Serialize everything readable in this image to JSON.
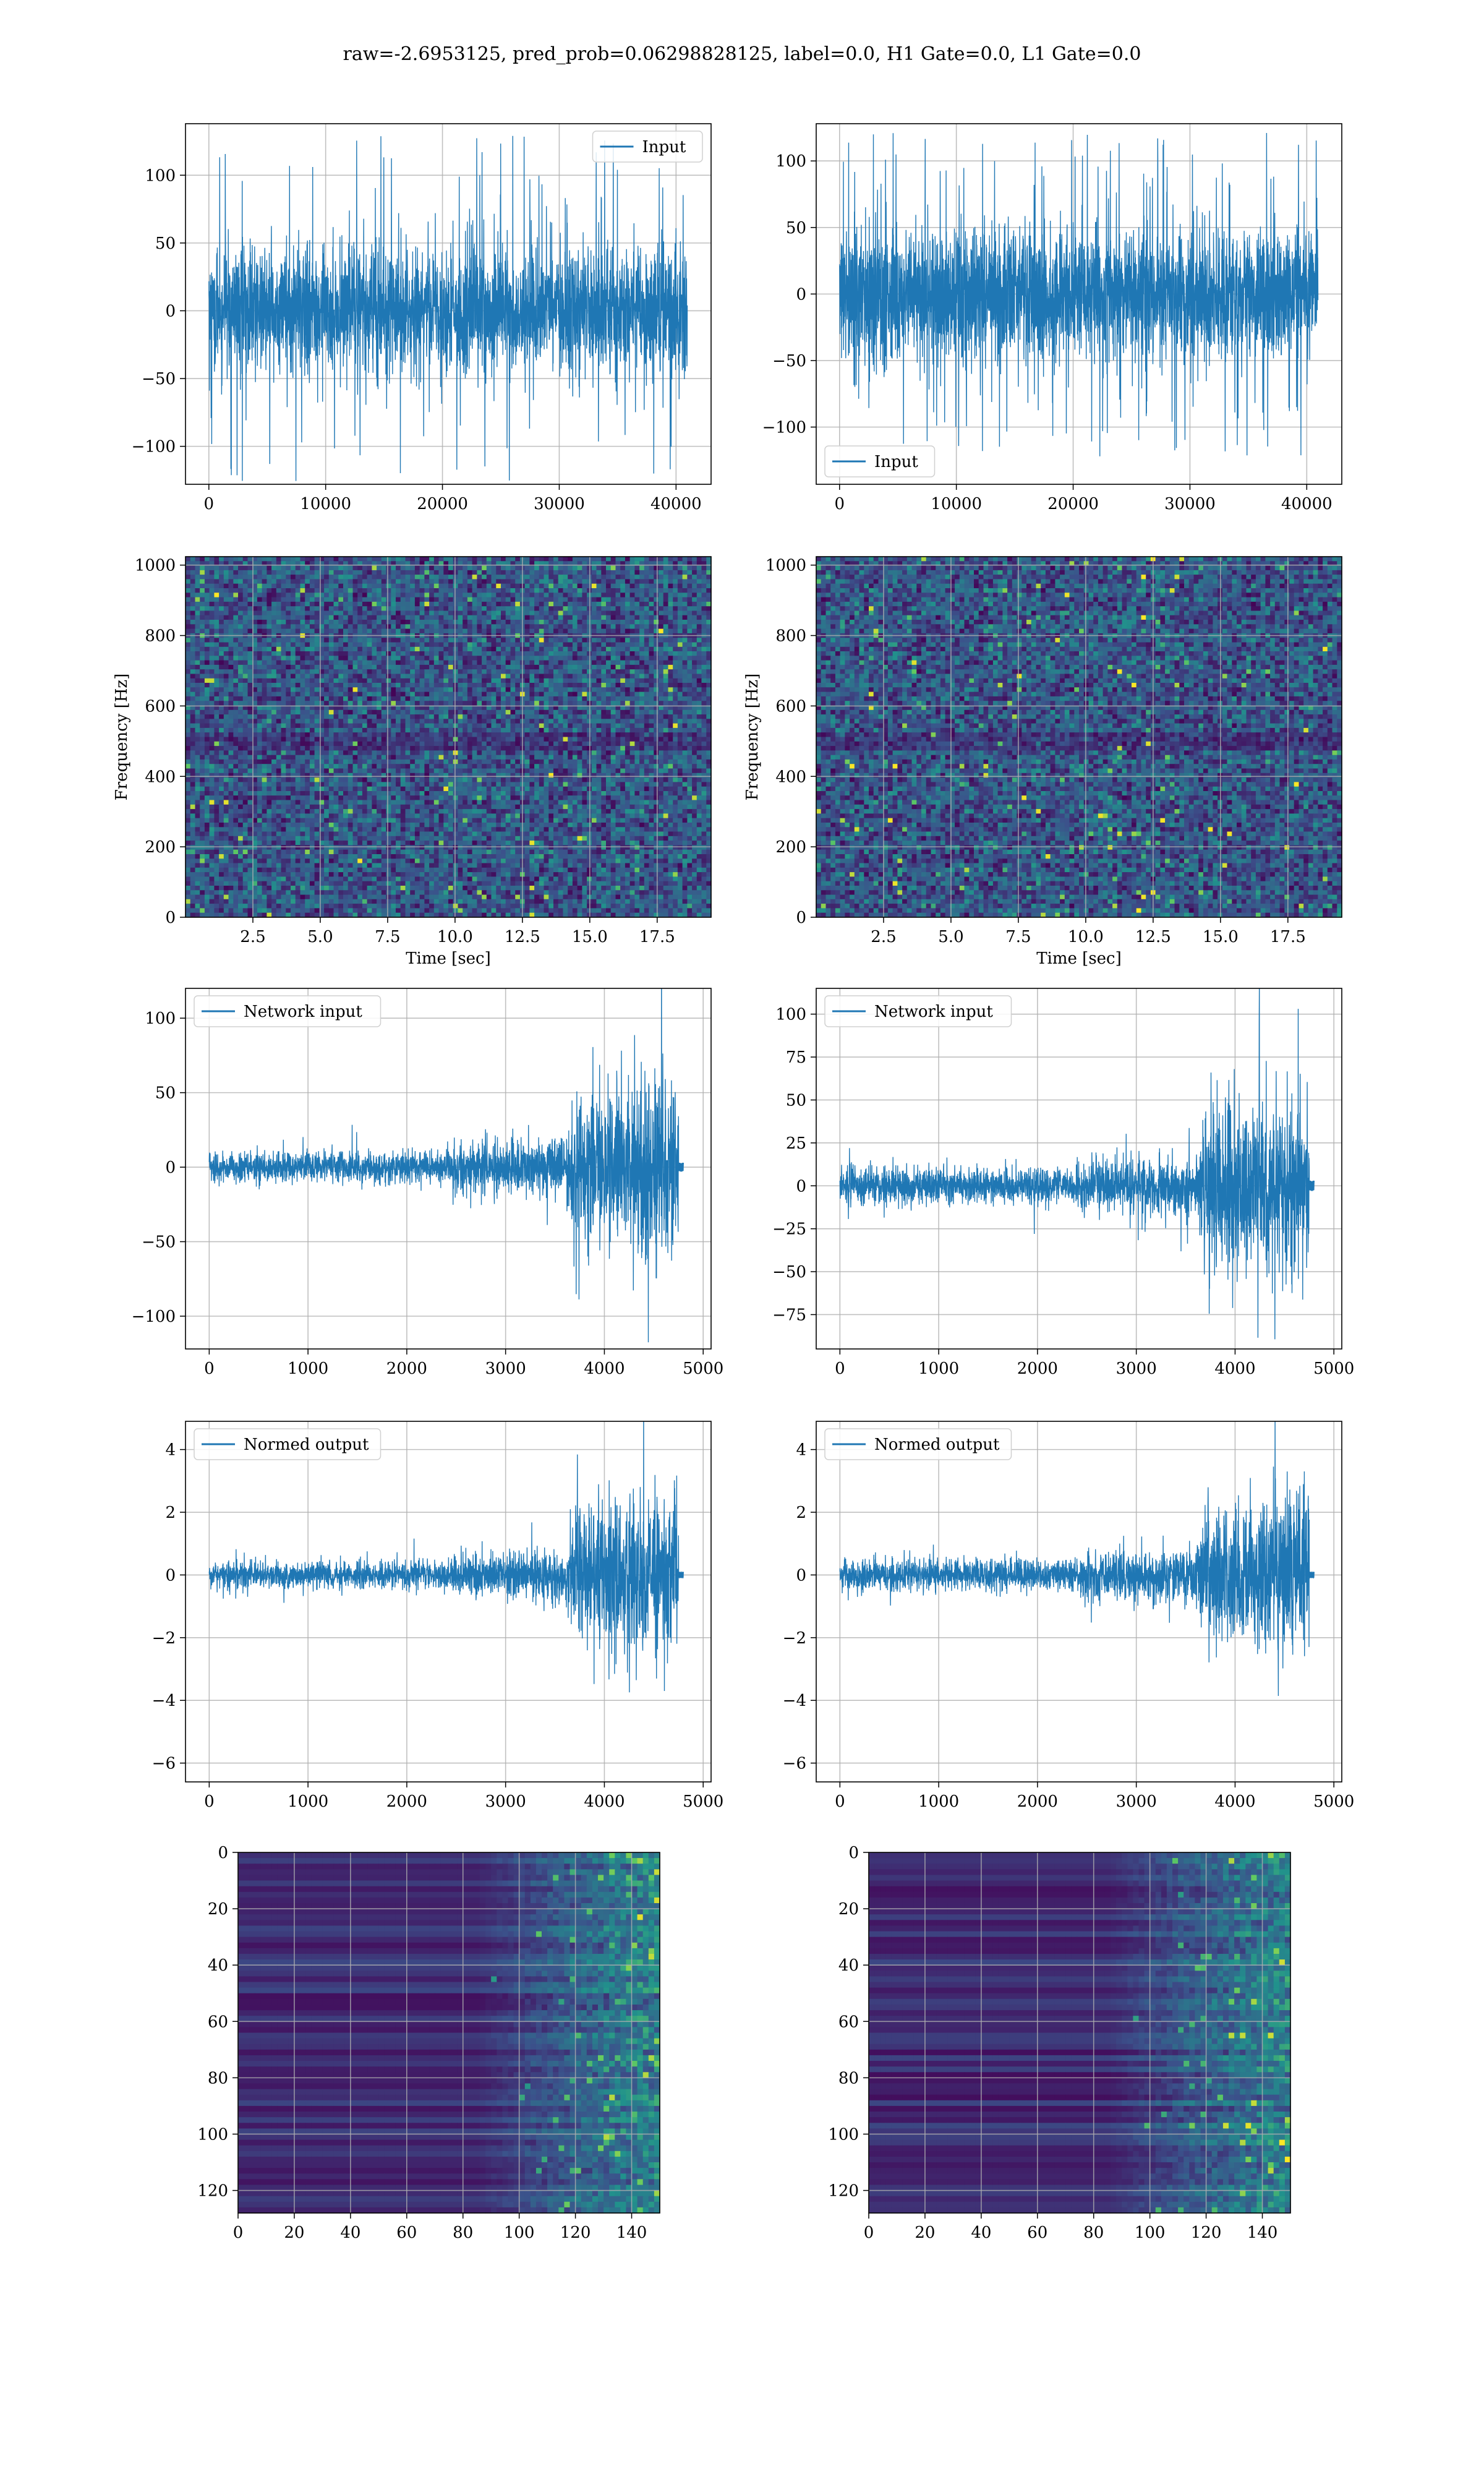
{
  "figure": {
    "suptitle": "raw=-2.6953125, pred_prob=0.06298828125, label=0.0, H1 Gate=0.0, L1 Gate=0.0"
  },
  "colors": {
    "line": "#1f77b4",
    "grid": "#b0b0b0",
    "heat_low": "#440154",
    "heat_mid": "#21918c",
    "heat_high": "#fde725"
  },
  "chart_data": [
    {
      "id": "h1-input",
      "type": "line",
      "legend": "top-right",
      "series": [
        {
          "name": "Input",
          "amplitude_core": 50,
          "amplitude_peak": 130,
          "n": 40960
        }
      ],
      "xlim": [
        -2000,
        43000
      ],
      "ylim": [
        -128,
        138
      ],
      "xticks": [
        0,
        10000,
        20000,
        30000,
        40000
      ],
      "xticklabels": [
        "0",
        "10000",
        "20000",
        "30000",
        "40000"
      ],
      "yticks": [
        -100,
        -50,
        0,
        50,
        100
      ],
      "yticklabels": [
        "−100",
        "−50",
        "0",
        "50",
        "100"
      ],
      "xlabel": "",
      "ylabel": "",
      "grid": true
    },
    {
      "id": "l1-input",
      "type": "line",
      "legend": "bottom-left",
      "series": [
        {
          "name": "Input",
          "amplitude_core": 55,
          "amplitude_peak": 122,
          "n": 40960
        }
      ],
      "xlim": [
        -2000,
        43000
      ],
      "ylim": [
        -143,
        128
      ],
      "xticks": [
        0,
        10000,
        20000,
        30000,
        40000
      ],
      "xticklabels": [
        "0",
        "10000",
        "20000",
        "30000",
        "40000"
      ],
      "yticks": [
        -100,
        -50,
        0,
        50,
        100
      ],
      "yticklabels": [
        "−100",
        "−50",
        "0",
        "50",
        "100"
      ],
      "xlabel": "",
      "ylabel": "",
      "grid": true
    },
    {
      "id": "h1-spectrogram",
      "type": "heatmap",
      "xlim": [
        0,
        19.5
      ],
      "ylim": [
        0,
        1024
      ],
      "xticks": [
        2.5,
        5.0,
        7.5,
        10.0,
        12.5,
        15.0,
        17.5
      ],
      "xticklabels": [
        "2.5",
        "5.0",
        "7.5",
        "10.0",
        "12.5",
        "15.0",
        "17.5"
      ],
      "yticks": [
        0,
        200,
        400,
        600,
        800,
        1000
      ],
      "yticklabels": [
        "0",
        "200",
        "400",
        "600",
        "800",
        "1000"
      ],
      "xlabel": "Time [sec]",
      "ylabel": "Frequency [Hz]",
      "grid": true
    },
    {
      "id": "l1-spectrogram",
      "type": "heatmap",
      "xlim": [
        0,
        19.5
      ],
      "ylim": [
        0,
        1024
      ],
      "xticks": [
        2.5,
        5.0,
        7.5,
        10.0,
        12.5,
        15.0,
        17.5
      ],
      "xticklabels": [
        "2.5",
        "5.0",
        "7.5",
        "10.0",
        "12.5",
        "15.0",
        "17.5"
      ],
      "yticks": [
        0,
        200,
        400,
        600,
        800,
        1000
      ],
      "yticklabels": [
        "0",
        "200",
        "400",
        "600",
        "800",
        "1000"
      ],
      "xlabel": "Time [sec]",
      "ylabel": "Frequency [Hz]",
      "grid": true
    },
    {
      "id": "h1-network-input",
      "type": "line",
      "legend": "top-left",
      "series": [
        {
          "name": "Network input",
          "envelope_x": [
            0,
            2400,
            2500,
            3600,
            3700,
            4750,
            4800
          ],
          "envelope_y": [
            12,
            12,
            20,
            22,
            60,
            70,
            3
          ]
        }
      ],
      "xlim": [
        -240,
        5080
      ],
      "ylim": [
        -122,
        120
      ],
      "xticks": [
        0,
        1000,
        2000,
        3000,
        4000,
        5000
      ],
      "xticklabels": [
        "0",
        "1000",
        "2000",
        "3000",
        "4000",
        "5000"
      ],
      "yticks": [
        -100,
        -50,
        0,
        50,
        100
      ],
      "yticklabels": [
        "−100",
        "−50",
        "0",
        "50",
        "100"
      ],
      "xlabel": "",
      "ylabel": "",
      "grid": true
    },
    {
      "id": "l1-network-input",
      "type": "line",
      "legend": "top-left",
      "series": [
        {
          "name": "Network input",
          "envelope_x": [
            0,
            2400,
            2500,
            3600,
            3700,
            4750,
            4800
          ],
          "envelope_y": [
            12,
            12,
            18,
            20,
            55,
            60,
            3
          ]
        }
      ],
      "xlim": [
        -240,
        5080
      ],
      "ylim": [
        -95,
        115
      ],
      "xticks": [
        0,
        1000,
        2000,
        3000,
        4000,
        5000
      ],
      "xticklabels": [
        "0",
        "1000",
        "2000",
        "3000",
        "4000",
        "5000"
      ],
      "yticks": [
        -75,
        -50,
        -25,
        0,
        25,
        50,
        75,
        100
      ],
      "yticklabels": [
        "−75",
        "−50",
        "−25",
        "0",
        "25",
        "50",
        "75",
        "100"
      ],
      "xlabel": "",
      "ylabel": "",
      "grid": true
    },
    {
      "id": "h1-normed-output",
      "type": "line",
      "legend": "top-left",
      "series": [
        {
          "name": "Normed output",
          "envelope_x": [
            0,
            2400,
            2500,
            3600,
            3700,
            4750,
            4800
          ],
          "envelope_y": [
            0.5,
            0.5,
            0.8,
            0.9,
            2.5,
            3.0,
            0.1
          ]
        }
      ],
      "xlim": [
        -240,
        5080
      ],
      "ylim": [
        -6.6,
        4.9
      ],
      "xticks": [
        0,
        1000,
        2000,
        3000,
        4000,
        5000
      ],
      "xticklabels": [
        "0",
        "1000",
        "2000",
        "3000",
        "4000",
        "5000"
      ],
      "yticks": [
        -6,
        -4,
        -2,
        0,
        2,
        4
      ],
      "yticklabels": [
        "−6",
        "−4",
        "−2",
        "0",
        "2",
        "4"
      ],
      "xlabel": "",
      "ylabel": "",
      "grid": true
    },
    {
      "id": "l1-normed-output",
      "type": "line",
      "legend": "top-left",
      "series": [
        {
          "name": "Normed output",
          "envelope_x": [
            0,
            2400,
            2500,
            3600,
            3700,
            4750,
            4800
          ],
          "envelope_y": [
            0.6,
            0.6,
            0.9,
            1.0,
            2.6,
            3.0,
            0.1
          ]
        }
      ],
      "xlim": [
        -240,
        5080
      ],
      "ylim": [
        -6.6,
        4.9
      ],
      "xticks": [
        0,
        1000,
        2000,
        3000,
        4000,
        5000
      ],
      "xticklabels": [
        "0",
        "1000",
        "2000",
        "3000",
        "4000",
        "5000"
      ],
      "yticks": [
        -6,
        -4,
        -2,
        0,
        2,
        4
      ],
      "yticklabels": [
        "−6",
        "−4",
        "−2",
        "0",
        "2",
        "4"
      ],
      "xlabel": "",
      "ylabel": "",
      "grid": true
    },
    {
      "id": "h1-feature-map",
      "type": "heatmap",
      "xlim": [
        0,
        150
      ],
      "ylim": [
        128,
        0
      ],
      "xticks": [
        0,
        20,
        40,
        60,
        80,
        100,
        120,
        140
      ],
      "xticklabels": [
        "0",
        "20",
        "40",
        "60",
        "80",
        "100",
        "120",
        "140"
      ],
      "yticks": [
        0,
        20,
        40,
        60,
        80,
        100,
        120
      ],
      "yticklabels": [
        "0",
        "20",
        "40",
        "60",
        "80",
        "100",
        "120"
      ],
      "xlabel": "",
      "ylabel": "",
      "grid": true
    },
    {
      "id": "l1-feature-map",
      "type": "heatmap",
      "xlim": [
        0,
        150
      ],
      "ylim": [
        128,
        0
      ],
      "xticks": [
        0,
        20,
        40,
        60,
        80,
        100,
        120,
        140
      ],
      "xticklabels": [
        "0",
        "20",
        "40",
        "60",
        "80",
        "100",
        "120",
        "140"
      ],
      "yticks": [
        0,
        20,
        40,
        60,
        80,
        100,
        120
      ],
      "yticklabels": [
        "0",
        "20",
        "40",
        "60",
        "80",
        "100",
        "120"
      ],
      "xlabel": "",
      "ylabel": "",
      "grid": true
    }
  ]
}
